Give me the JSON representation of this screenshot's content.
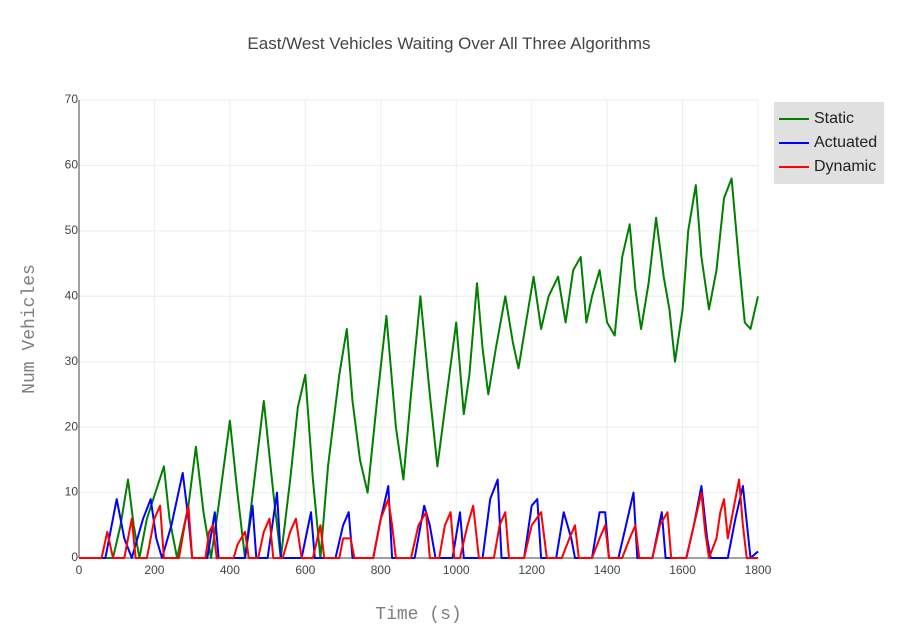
{
  "chart_data": {
    "type": "line",
    "title": "East/West Vehicles Waiting Over All Three Algorithms",
    "xlabel": "Time (s)",
    "ylabel": "Num Vehicles",
    "xlim": [
      0,
      1800
    ],
    "ylim": [
      0,
      70
    ],
    "xticks": [
      0,
      200,
      400,
      600,
      800,
      1000,
      1200,
      1400,
      1600,
      1800
    ],
    "yticks": [
      0,
      10,
      20,
      30,
      40,
      50,
      60,
      70
    ],
    "grid": true,
    "legend_position": "top-right",
    "series": [
      {
        "name": "Static",
        "color": "#008000",
        "points": [
          [
            0,
            0
          ],
          [
            90,
            0
          ],
          [
            110,
            5
          ],
          [
            130,
            12
          ],
          [
            145,
            5
          ],
          [
            160,
            0
          ],
          [
            180,
            6
          ],
          [
            225,
            14
          ],
          [
            240,
            6
          ],
          [
            260,
            0
          ],
          [
            290,
            8
          ],
          [
            310,
            17
          ],
          [
            330,
            7
          ],
          [
            350,
            0
          ],
          [
            370,
            8
          ],
          [
            400,
            21
          ],
          [
            420,
            10
          ],
          [
            440,
            0
          ],
          [
            465,
            12
          ],
          [
            490,
            24
          ],
          [
            515,
            10
          ],
          [
            535,
            0
          ],
          [
            560,
            12
          ],
          [
            580,
            23
          ],
          [
            600,
            28
          ],
          [
            620,
            12
          ],
          [
            640,
            0
          ],
          [
            660,
            14
          ],
          [
            690,
            28
          ],
          [
            710,
            35
          ],
          [
            725,
            24
          ],
          [
            745,
            15
          ],
          [
            765,
            10
          ],
          [
            790,
            24
          ],
          [
            815,
            37
          ],
          [
            840,
            20
          ],
          [
            860,
            12
          ],
          [
            880,
            25
          ],
          [
            905,
            40
          ],
          [
            930,
            25
          ],
          [
            950,
            14
          ],
          [
            975,
            25
          ],
          [
            1000,
            36
          ],
          [
            1020,
            22
          ],
          [
            1035,
            28
          ],
          [
            1055,
            42
          ],
          [
            1070,
            32
          ],
          [
            1085,
            25
          ],
          [
            1105,
            32
          ],
          [
            1130,
            40
          ],
          [
            1150,
            33
          ],
          [
            1165,
            29
          ],
          [
            1185,
            36
          ],
          [
            1205,
            43
          ],
          [
            1225,
            35
          ],
          [
            1245,
            40
          ],
          [
            1270,
            43
          ],
          [
            1290,
            36
          ],
          [
            1310,
            44
          ],
          [
            1330,
            46
          ],
          [
            1345,
            36
          ],
          [
            1360,
            40
          ],
          [
            1380,
            44
          ],
          [
            1400,
            36
          ],
          [
            1420,
            34
          ],
          [
            1440,
            46
          ],
          [
            1460,
            51
          ],
          [
            1475,
            41
          ],
          [
            1490,
            35
          ],
          [
            1510,
            42
          ],
          [
            1530,
            52
          ],
          [
            1550,
            43
          ],
          [
            1565,
            38
          ],
          [
            1580,
            30
          ],
          [
            1600,
            38
          ],
          [
            1615,
            50
          ],
          [
            1635,
            57
          ],
          [
            1650,
            46
          ],
          [
            1670,
            38
          ],
          [
            1690,
            44
          ],
          [
            1710,
            55
          ],
          [
            1730,
            58
          ],
          [
            1750,
            45
          ],
          [
            1765,
            36
          ],
          [
            1780,
            35
          ],
          [
            1800,
            40
          ]
        ]
      },
      {
        "name": "Actuated",
        "color": "#0000ff",
        "points": [
          [
            0,
            0
          ],
          [
            70,
            0
          ],
          [
            100,
            9
          ],
          [
            120,
            3
          ],
          [
            140,
            0
          ],
          [
            170,
            6
          ],
          [
            190,
            9
          ],
          [
            205,
            3
          ],
          [
            220,
            0
          ],
          [
            245,
            5
          ],
          [
            275,
            13
          ],
          [
            290,
            6
          ],
          [
            300,
            0
          ],
          [
            340,
            0
          ],
          [
            360,
            7
          ],
          [
            370,
            0
          ],
          [
            440,
            0
          ],
          [
            460,
            8
          ],
          [
            470,
            0
          ],
          [
            500,
            0
          ],
          [
            525,
            10
          ],
          [
            535,
            0
          ],
          [
            590,
            0
          ],
          [
            615,
            7
          ],
          [
            625,
            0
          ],
          [
            680,
            0
          ],
          [
            700,
            5
          ],
          [
            715,
            7
          ],
          [
            725,
            0
          ],
          [
            780,
            0
          ],
          [
            800,
            6
          ],
          [
            820,
            11
          ],
          [
            830,
            0
          ],
          [
            890,
            0
          ],
          [
            915,
            8
          ],
          [
            930,
            5
          ],
          [
            945,
            0
          ],
          [
            990,
            0
          ],
          [
            1010,
            7
          ],
          [
            1020,
            0
          ],
          [
            1070,
            0
          ],
          [
            1090,
            9
          ],
          [
            1110,
            12
          ],
          [
            1120,
            0
          ],
          [
            1180,
            0
          ],
          [
            1200,
            8
          ],
          [
            1215,
            9
          ],
          [
            1225,
            0
          ],
          [
            1265,
            0
          ],
          [
            1285,
            7
          ],
          [
            1305,
            3
          ],
          [
            1315,
            0
          ],
          [
            1360,
            0
          ],
          [
            1380,
            7
          ],
          [
            1395,
            7
          ],
          [
            1405,
            0
          ],
          [
            1430,
            0
          ],
          [
            1450,
            5
          ],
          [
            1470,
            10
          ],
          [
            1480,
            0
          ],
          [
            1520,
            0
          ],
          [
            1545,
            7
          ],
          [
            1555,
            0
          ],
          [
            1610,
            0
          ],
          [
            1630,
            5
          ],
          [
            1650,
            11
          ],
          [
            1665,
            3
          ],
          [
            1675,
            0
          ],
          [
            1720,
            0
          ],
          [
            1740,
            6
          ],
          [
            1760,
            11
          ],
          [
            1780,
            0
          ],
          [
            1800,
            1
          ]
        ]
      },
      {
        "name": "Dynamic",
        "color": "#ff0000",
        "points": [
          [
            0,
            0
          ],
          [
            60,
            0
          ],
          [
            75,
            4
          ],
          [
            90,
            0
          ],
          [
            120,
            0
          ],
          [
            140,
            6
          ],
          [
            150,
            0
          ],
          [
            180,
            0
          ],
          [
            200,
            6
          ],
          [
            215,
            8
          ],
          [
            225,
            0
          ],
          [
            265,
            0
          ],
          [
            280,
            5
          ],
          [
            290,
            8
          ],
          [
            300,
            0
          ],
          [
            335,
            0
          ],
          [
            345,
            4
          ],
          [
            355,
            5
          ],
          [
            365,
            0
          ],
          [
            410,
            0
          ],
          [
            420,
            2
          ],
          [
            440,
            4
          ],
          [
            450,
            0
          ],
          [
            475,
            0
          ],
          [
            490,
            4
          ],
          [
            505,
            6
          ],
          [
            515,
            0
          ],
          [
            540,
            0
          ],
          [
            560,
            4
          ],
          [
            575,
            6
          ],
          [
            590,
            0
          ],
          [
            620,
            0
          ],
          [
            640,
            5
          ],
          [
            650,
            0
          ],
          [
            690,
            0
          ],
          [
            700,
            3
          ],
          [
            720,
            3
          ],
          [
            730,
            0
          ],
          [
            780,
            0
          ],
          [
            800,
            6
          ],
          [
            820,
            9
          ],
          [
            830,
            5
          ],
          [
            840,
            0
          ],
          [
            880,
            0
          ],
          [
            900,
            5
          ],
          [
            920,
            7
          ],
          [
            930,
            0
          ],
          [
            955,
            0
          ],
          [
            970,
            5
          ],
          [
            985,
            7
          ],
          [
            995,
            0
          ],
          [
            1010,
            0
          ],
          [
            1030,
            5
          ],
          [
            1045,
            8
          ],
          [
            1060,
            0
          ],
          [
            1100,
            0
          ],
          [
            1115,
            5
          ],
          [
            1130,
            7
          ],
          [
            1140,
            0
          ],
          [
            1180,
            0
          ],
          [
            1200,
            5
          ],
          [
            1225,
            7
          ],
          [
            1240,
            0
          ],
          [
            1280,
            0
          ],
          [
            1300,
            3
          ],
          [
            1315,
            5
          ],
          [
            1325,
            0
          ],
          [
            1360,
            0
          ],
          [
            1380,
            3
          ],
          [
            1395,
            5
          ],
          [
            1405,
            0
          ],
          [
            1440,
            0
          ],
          [
            1460,
            3
          ],
          [
            1475,
            5
          ],
          [
            1485,
            0
          ],
          [
            1520,
            0
          ],
          [
            1540,
            5
          ],
          [
            1560,
            7
          ],
          [
            1570,
            0
          ],
          [
            1610,
            0
          ],
          [
            1630,
            5
          ],
          [
            1650,
            10
          ],
          [
            1660,
            4
          ],
          [
            1670,
            0
          ],
          [
            1690,
            3
          ],
          [
            1700,
            7
          ],
          [
            1710,
            9
          ],
          [
            1720,
            3
          ],
          [
            1730,
            6
          ],
          [
            1750,
            12
          ],
          [
            1760,
            5
          ],
          [
            1770,
            0
          ],
          [
            1800,
            0
          ]
        ]
      }
    ]
  }
}
